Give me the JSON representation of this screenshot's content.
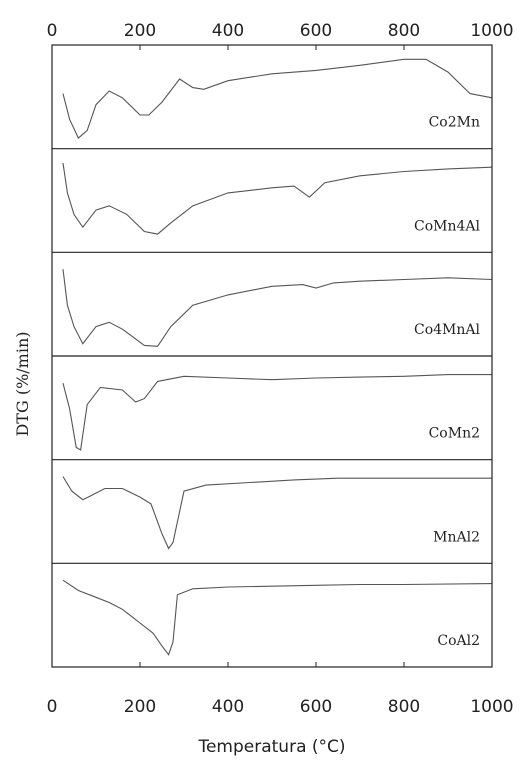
{
  "chart_data": {
    "type": "line",
    "xlabel": "Temperatura (°C)",
    "ylabel": "DTG (%/min)",
    "xlim": [
      0,
      1000
    ],
    "xticks": [
      0,
      200,
      400,
      600,
      800,
      1000
    ],
    "tick_labels": [
      "0",
      "200",
      "400",
      "600",
      "800",
      "1000"
    ],
    "grid": false,
    "stacked_panels": true,
    "series": [
      {
        "name": "Co2Mn",
        "points": [
          [
            25,
            0.55
          ],
          [
            40,
            0.25
          ],
          [
            60,
            0.03
          ],
          [
            80,
            0.12
          ],
          [
            100,
            0.42
          ],
          [
            130,
            0.58
          ],
          [
            160,
            0.5
          ],
          [
            200,
            0.3
          ],
          [
            220,
            0.3
          ],
          [
            250,
            0.45
          ],
          [
            290,
            0.72
          ],
          [
            320,
            0.62
          ],
          [
            345,
            0.6
          ],
          [
            400,
            0.7
          ],
          [
            500,
            0.78
          ],
          [
            600,
            0.82
          ],
          [
            700,
            0.88
          ],
          [
            800,
            0.95
          ],
          [
            850,
            0.95
          ],
          [
            900,
            0.8
          ],
          [
            950,
            0.55
          ],
          [
            1000,
            0.5
          ]
        ]
      },
      {
        "name": "CoMn4Al",
        "points": [
          [
            25,
            0.95
          ],
          [
            35,
            0.6
          ],
          [
            50,
            0.35
          ],
          [
            70,
            0.2
          ],
          [
            100,
            0.4
          ],
          [
            130,
            0.45
          ],
          [
            170,
            0.35
          ],
          [
            210,
            0.15
          ],
          [
            240,
            0.12
          ],
          [
            270,
            0.25
          ],
          [
            320,
            0.45
          ],
          [
            400,
            0.6
          ],
          [
            500,
            0.66
          ],
          [
            550,
            0.68
          ],
          [
            585,
            0.55
          ],
          [
            620,
            0.72
          ],
          [
            700,
            0.8
          ],
          [
            800,
            0.85
          ],
          [
            900,
            0.88
          ],
          [
            1000,
            0.9
          ]
        ]
      },
      {
        "name": "Co4MnAl",
        "points": [
          [
            25,
            0.92
          ],
          [
            35,
            0.5
          ],
          [
            50,
            0.25
          ],
          [
            70,
            0.05
          ],
          [
            100,
            0.25
          ],
          [
            130,
            0.3
          ],
          [
            160,
            0.22
          ],
          [
            210,
            0.03
          ],
          [
            240,
            0.02
          ],
          [
            270,
            0.25
          ],
          [
            320,
            0.5
          ],
          [
            400,
            0.62
          ],
          [
            500,
            0.72
          ],
          [
            570,
            0.74
          ],
          [
            600,
            0.7
          ],
          [
            640,
            0.76
          ],
          [
            700,
            0.78
          ],
          [
            800,
            0.8
          ],
          [
            900,
            0.82
          ],
          [
            1000,
            0.8
          ]
        ]
      },
      {
        "name": "CoMn2",
        "points": [
          [
            25,
            0.8
          ],
          [
            40,
            0.5
          ],
          [
            55,
            0.05
          ],
          [
            65,
            0.02
          ],
          [
            80,
            0.55
          ],
          [
            110,
            0.75
          ],
          [
            160,
            0.72
          ],
          [
            190,
            0.58
          ],
          [
            210,
            0.62
          ],
          [
            240,
            0.82
          ],
          [
            300,
            0.88
          ],
          [
            400,
            0.86
          ],
          [
            500,
            0.84
          ],
          [
            600,
            0.86
          ],
          [
            700,
            0.87
          ],
          [
            800,
            0.88
          ],
          [
            900,
            0.9
          ],
          [
            1000,
            0.9
          ]
        ]
      },
      {
        "name": "MnAl2",
        "points": [
          [
            25,
            0.92
          ],
          [
            45,
            0.75
          ],
          [
            70,
            0.65
          ],
          [
            90,
            0.7
          ],
          [
            120,
            0.78
          ],
          [
            160,
            0.78
          ],
          [
            200,
            0.68
          ],
          [
            225,
            0.6
          ],
          [
            250,
            0.25
          ],
          [
            265,
            0.08
          ],
          [
            275,
            0.15
          ],
          [
            300,
            0.75
          ],
          [
            350,
            0.82
          ],
          [
            450,
            0.85
          ],
          [
            550,
            0.88
          ],
          [
            650,
            0.9
          ],
          [
            800,
            0.9
          ],
          [
            1000,
            0.9
          ]
        ]
      },
      {
        "name": "CoAl2",
        "points": [
          [
            25,
            0.92
          ],
          [
            60,
            0.8
          ],
          [
            100,
            0.72
          ],
          [
            130,
            0.66
          ],
          [
            160,
            0.58
          ],
          [
            200,
            0.42
          ],
          [
            230,
            0.3
          ],
          [
            250,
            0.15
          ],
          [
            265,
            0.05
          ],
          [
            275,
            0.2
          ],
          [
            285,
            0.75
          ],
          [
            320,
            0.82
          ],
          [
            400,
            0.84
          ],
          [
            500,
            0.85
          ],
          [
            600,
            0.86
          ],
          [
            700,
            0.87
          ],
          [
            800,
            0.87
          ],
          [
            1000,
            0.88
          ]
        ]
      }
    ]
  }
}
